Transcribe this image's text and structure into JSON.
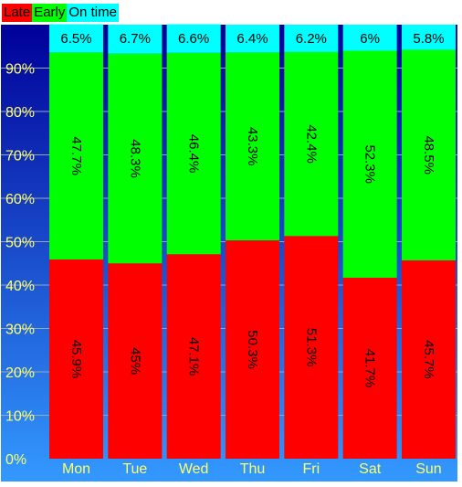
{
  "chart_data": {
    "type": "bar",
    "stacked": true,
    "percent": true,
    "categories": [
      "Mon",
      "Tue",
      "Wed",
      "Thu",
      "Fri",
      "Sat",
      "Sun"
    ],
    "series": [
      {
        "name": "Late",
        "color": "#ff0000",
        "values": [
          45.9,
          45,
          47.1,
          50.3,
          51.3,
          41.7,
          45.7
        ],
        "labels": [
          "45.9%",
          "45%",
          "47.1%",
          "50.3%",
          "51.3%",
          "41.7%",
          "45.7%"
        ]
      },
      {
        "name": "Early",
        "color": "#00ff00",
        "values": [
          47.7,
          48.3,
          46.4,
          43.3,
          42.4,
          52.3,
          48.5
        ],
        "labels": [
          "47.7%",
          "48.3%",
          "46.4%",
          "43.3%",
          "42.4%",
          "52.3%",
          "48.5%"
        ]
      },
      {
        "name": "On time",
        "color": "#00ffff",
        "values": [
          6.5,
          6.7,
          6.6,
          6.4,
          6.2,
          6,
          5.8
        ],
        "labels": [
          "6.5%",
          "6.7%",
          "6.6%",
          "6.4%",
          "6.2%",
          "6%",
          "5.8%"
        ]
      }
    ],
    "ylim": [
      0,
      100
    ],
    "yticks": [
      0,
      10,
      20,
      30,
      40,
      50,
      60,
      70,
      80,
      90
    ],
    "ytick_labels": [
      "0%",
      "10%",
      "20%",
      "30%",
      "40%",
      "50%",
      "60%",
      "70%",
      "80%",
      "90%"
    ],
    "grid": true,
    "legend_position": "top-left",
    "background_gradient": [
      "#000099",
      "#3399ff"
    ]
  }
}
